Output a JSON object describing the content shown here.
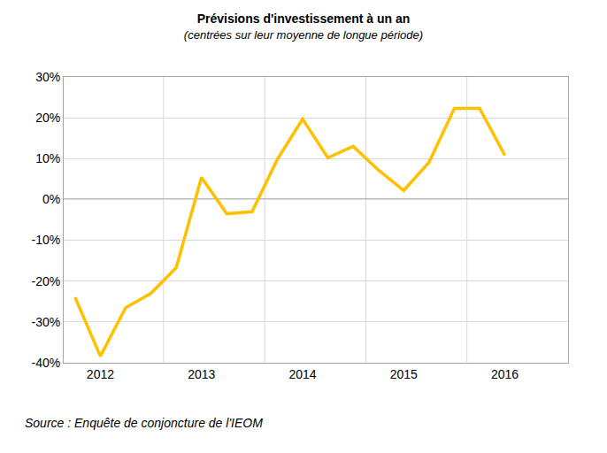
{
  "chart_data": {
    "type": "line",
    "title": "Prévisions d'investissement à un an",
    "subtitle": "(centrées sur leur moyenne de longue période)",
    "source": "Source : Enquête de conjoncture de l'IEOM",
    "categories": [
      null,
      "2012",
      null,
      null,
      null,
      "2013",
      null,
      null,
      null,
      "2014",
      null,
      null,
      null,
      "2015",
      null,
      null,
      null,
      "2016"
    ],
    "values": [
      -24,
      -38.4,
      -26.5,
      -23,
      -16.7,
      5.4,
      -3.5,
      -3,
      9.8,
      19.7,
      10.2,
      13,
      7.2,
      2.2,
      9.1,
      22.3,
      22.3,
      10.8
    ],
    "color": "#ffc000",
    "ylim": [
      -40,
      30
    ],
    "yticks": [
      {
        "value": -40,
        "label": "-40%"
      },
      {
        "value": -30,
        "label": "-30%"
      },
      {
        "value": -20,
        "label": "-20%"
      },
      {
        "value": -10,
        "label": "-10%"
      },
      {
        "value": 0,
        "label": "0%"
      },
      {
        "value": 10,
        "label": "10%"
      },
      {
        "value": 20,
        "label": "20%"
      },
      {
        "value": 30,
        "label": "30%"
      }
    ],
    "grid": true
  }
}
